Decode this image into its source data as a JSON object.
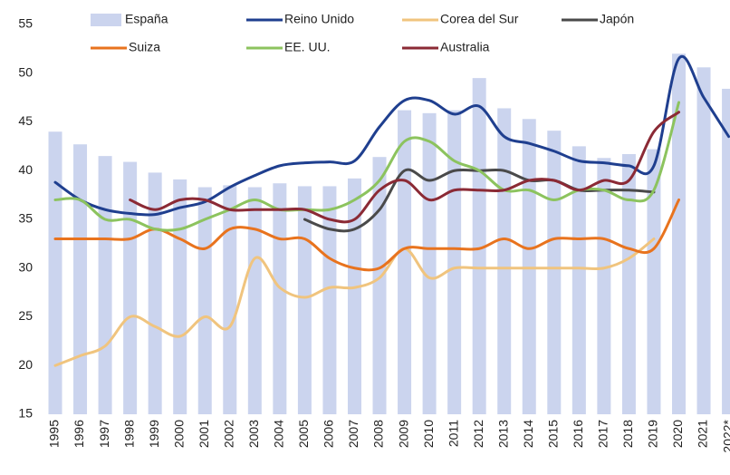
{
  "chart_data": {
    "type": "bar_line",
    "categories": [
      "1995",
      "1996",
      "1997",
      "1998",
      "1999",
      "2000",
      "2001",
      "2002",
      "2003",
      "2004",
      "2005",
      "2006",
      "2007",
      "2008",
      "2009",
      "2010",
      "2011",
      "2012",
      "2013",
      "2014",
      "2015",
      "2016",
      "2017",
      "2018",
      "2019",
      "2020",
      "2021",
      "2022*"
    ],
    "ylim": [
      15,
      55
    ],
    "yticks": [
      15,
      20,
      25,
      30,
      35,
      40,
      45,
      50,
      55
    ],
    "grid": false,
    "legend": "top",
    "series": [
      {
        "name": "España",
        "kind": "bar",
        "color": "#cbd4ee",
        "values": [
          44,
          42.7,
          41.5,
          40.9,
          39.8,
          39.1,
          38.3,
          38.5,
          38.3,
          38.7,
          38.4,
          38.4,
          39.2,
          41.4,
          46.2,
          45.9,
          46.2,
          49.5,
          46.4,
          45.3,
          44.1,
          42.5,
          41.3,
          41.7,
          42.2,
          52,
          50.6,
          48.4
        ]
      },
      {
        "name": "Reino Unido",
        "kind": "line",
        "color": "#1f3f8f",
        "values": [
          38.8,
          37,
          36,
          35.6,
          35.5,
          36.2,
          36.8,
          38.3,
          39.5,
          40.5,
          40.8,
          40.9,
          41,
          44.5,
          47.2,
          47.2,
          45.8,
          46.6,
          43.5,
          42.8,
          42,
          41,
          40.8,
          40.5,
          40.5,
          51.5,
          47.5,
          43.5
        ]
      },
      {
        "name": "Corea del Sur",
        "kind": "line",
        "color": "#f0c47e",
        "values": [
          20,
          21,
          22,
          25,
          24,
          23,
          25,
          24,
          31,
          28,
          27,
          28,
          28,
          29,
          32,
          29,
          30,
          30,
          30,
          30,
          30,
          30,
          30,
          31,
          33,
          null,
          null,
          null
        ]
      },
      {
        "name": "Japón",
        "kind": "line",
        "color": "#4a4a4a",
        "values": [
          null,
          null,
          null,
          null,
          null,
          null,
          null,
          null,
          null,
          null,
          35,
          34,
          34,
          36,
          40,
          39,
          40,
          40,
          40,
          39,
          39,
          38,
          38,
          38,
          37.8,
          null,
          null,
          null
        ]
      },
      {
        "name": "Suiza",
        "kind": "line",
        "color": "#e8731e",
        "values": [
          33,
          33,
          33,
          33,
          34,
          33,
          32,
          34,
          34,
          33,
          33,
          31,
          30,
          30,
          32,
          32,
          32,
          32,
          33,
          32,
          33,
          33,
          33,
          32,
          32,
          37,
          null,
          null
        ]
      },
      {
        "name": "EE. UU.",
        "kind": "line",
        "color": "#8cc35e",
        "values": [
          37,
          37,
          35,
          35,
          34,
          34,
          35,
          36,
          37,
          36,
          36,
          36,
          37,
          39,
          43,
          43,
          41,
          40,
          38,
          38,
          37,
          38,
          38,
          37,
          38,
          47,
          null,
          null
        ]
      },
      {
        "name": "Australia",
        "kind": "line",
        "color": "#8b2a35",
        "values": [
          null,
          null,
          null,
          37,
          36,
          37,
          37,
          36,
          36,
          36,
          36,
          35,
          35,
          38,
          39,
          37,
          38,
          38,
          38,
          39,
          39,
          38,
          39,
          39,
          44,
          46,
          null,
          null
        ]
      }
    ]
  }
}
